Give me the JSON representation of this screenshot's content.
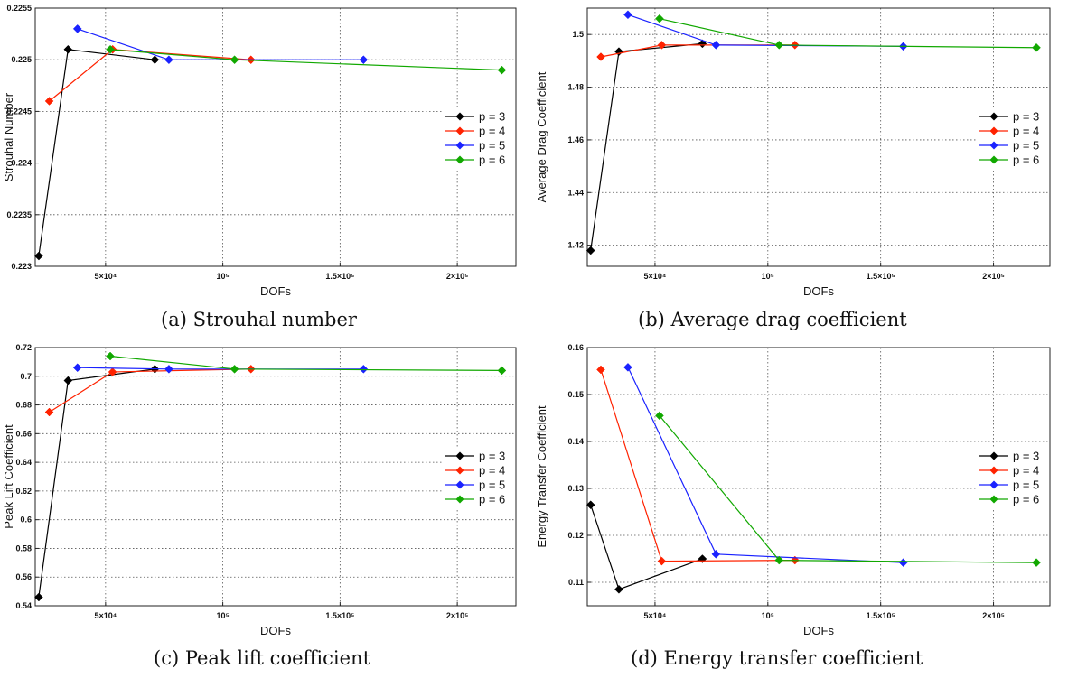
{
  "colors": {
    "p3": "#000000",
    "p4": "#ff2200",
    "p5": "#1a22ff",
    "p6": "#11a800"
  },
  "captions": {
    "a": "(a) Strouhal number",
    "b": "(b) Average drag coefficient",
    "c": "(c) Peak lift coefficient",
    "d": "(d) Energy transfer coefficient"
  },
  "chart_data": [
    {
      "id": "a",
      "type": "line",
      "xlabel": "DOFs",
      "ylabel": "Strouhal Number",
      "xlim": [
        20000,
        225000
      ],
      "ylim": [
        0.223,
        0.2255
      ],
      "xticks": [
        {
          "v": 50000,
          "label": "5×10⁴"
        },
        {
          "v": 100000,
          "label": "10⁵"
        },
        {
          "v": 150000,
          "label": "1.5×10⁵"
        },
        {
          "v": 200000,
          "label": "2×10⁵"
        }
      ],
      "yticks": [
        {
          "v": 0.223,
          "label": "0.223"
        },
        {
          "v": 0.2235,
          "label": "0.2235"
        },
        {
          "v": 0.224,
          "label": "0.224"
        },
        {
          "v": 0.2245,
          "label": "0.2245"
        },
        {
          "v": 0.225,
          "label": "0.225"
        },
        {
          "v": 0.2255,
          "label": "0.2255"
        }
      ],
      "legend": "right",
      "series": [
        {
          "name": "p = 3",
          "color": "p3",
          "x": [
            21500,
            34000,
            71000
          ],
          "y": [
            0.2231,
            0.2251,
            0.225
          ]
        },
        {
          "name": "p = 4",
          "color": "p4",
          "x": [
            26000,
            53000,
            112000
          ],
          "y": [
            0.2246,
            0.2251,
            0.225
          ]
        },
        {
          "name": "p = 5",
          "color": "p5",
          "x": [
            38000,
            77000,
            160000
          ],
          "y": [
            0.2253,
            0.225,
            0.225
          ]
        },
        {
          "name": "p = 6",
          "color": "p6",
          "x": [
            52000,
            105000,
            219000
          ],
          "y": [
            0.2251,
            0.225,
            0.2249
          ]
        }
      ]
    },
    {
      "id": "b",
      "type": "line",
      "xlabel": "DOFs",
      "ylabel": "Average Drag Coefficient",
      "xlim": [
        20000,
        225000
      ],
      "ylim": [
        1.412,
        1.51
      ],
      "xticks": [
        {
          "v": 50000,
          "label": "5×10⁴"
        },
        {
          "v": 100000,
          "label": "10⁵"
        },
        {
          "v": 150000,
          "label": "1.5×10⁵"
        },
        {
          "v": 200000,
          "label": "2×10⁵"
        }
      ],
      "yticks": [
        {
          "v": 1.42,
          "label": "1.42"
        },
        {
          "v": 1.44,
          "label": "1.44"
        },
        {
          "v": 1.46,
          "label": "1.46"
        },
        {
          "v": 1.48,
          "label": "1.48"
        },
        {
          "v": 1.5,
          "label": "1.5"
        }
      ],
      "legend": "right",
      "series": [
        {
          "name": "p = 3",
          "color": "p3",
          "x": [
            21500,
            34000,
            71000
          ],
          "y": [
            1.418,
            1.4935,
            1.4965
          ]
        },
        {
          "name": "p = 4",
          "color": "p4",
          "x": [
            26000,
            53000,
            112000
          ],
          "y": [
            1.4915,
            1.496,
            1.496
          ]
        },
        {
          "name": "p = 5",
          "color": "p5",
          "x": [
            38000,
            77000,
            160000
          ],
          "y": [
            1.5075,
            1.496,
            1.4955
          ]
        },
        {
          "name": "p = 6",
          "color": "p6",
          "x": [
            52000,
            105000,
            219000
          ],
          "y": [
            1.506,
            1.496,
            1.495
          ]
        }
      ]
    },
    {
      "id": "c",
      "type": "line",
      "xlabel": "DOFs",
      "ylabel": "Peak Lift Coefficient",
      "xlim": [
        20000,
        225000
      ],
      "ylim": [
        0.54,
        0.72
      ],
      "xticks": [
        {
          "v": 50000,
          "label": "5×10⁴"
        },
        {
          "v": 100000,
          "label": "10⁵"
        },
        {
          "v": 150000,
          "label": "1.5×10⁵"
        },
        {
          "v": 200000,
          "label": "2×10⁵"
        }
      ],
      "yticks": [
        {
          "v": 0.54,
          "label": "0.54"
        },
        {
          "v": 0.56,
          "label": "0.56"
        },
        {
          "v": 0.58,
          "label": "0.58"
        },
        {
          "v": 0.6,
          "label": "0.6"
        },
        {
          "v": 0.62,
          "label": "0.62"
        },
        {
          "v": 0.64,
          "label": "0.64"
        },
        {
          "v": 0.66,
          "label": "0.66"
        },
        {
          "v": 0.68,
          "label": "0.68"
        },
        {
          "v": 0.7,
          "label": "0.7"
        },
        {
          "v": 0.72,
          "label": "0.72"
        }
      ],
      "legend": "right",
      "series": [
        {
          "name": "p = 3",
          "color": "p3",
          "x": [
            21500,
            34000,
            71000
          ],
          "y": [
            0.546,
            0.697,
            0.705
          ]
        },
        {
          "name": "p = 4",
          "color": "p4",
          "x": [
            26000,
            53000,
            112000
          ],
          "y": [
            0.675,
            0.703,
            0.705
          ]
        },
        {
          "name": "p = 5",
          "color": "p5",
          "x": [
            38000,
            77000,
            160000
          ],
          "y": [
            0.706,
            0.705,
            0.705
          ]
        },
        {
          "name": "p = 6",
          "color": "p6",
          "x": [
            52000,
            105000,
            219000
          ],
          "y": [
            0.714,
            0.705,
            0.704
          ]
        }
      ]
    },
    {
      "id": "d",
      "type": "line",
      "xlabel": "DOFs",
      "ylabel": "Energy Transfer Coefficient",
      "xlim": [
        20000,
        225000
      ],
      "ylim": [
        0.105,
        0.16
      ],
      "xticks": [
        {
          "v": 50000,
          "label": "5×10⁴"
        },
        {
          "v": 100000,
          "label": "10⁵"
        },
        {
          "v": 150000,
          "label": "1.5×10⁵"
        },
        {
          "v": 200000,
          "label": "2×10⁵"
        }
      ],
      "yticks": [
        {
          "v": 0.11,
          "label": "0.11"
        },
        {
          "v": 0.12,
          "label": "0.12"
        },
        {
          "v": 0.13,
          "label": "0.13"
        },
        {
          "v": 0.14,
          "label": "0.14"
        },
        {
          "v": 0.15,
          "label": "0.15"
        },
        {
          "v": 0.16,
          "label": "0.16"
        }
      ],
      "legend": "right",
      "series": [
        {
          "name": "p = 3",
          "color": "p3",
          "x": [
            21500,
            34000,
            71000
          ],
          "y": [
            0.1265,
            0.1085,
            0.115
          ]
        },
        {
          "name": "p = 4",
          "color": "p4",
          "x": [
            26000,
            53000,
            112000
          ],
          "y": [
            0.1553,
            0.1145,
            0.1147
          ]
        },
        {
          "name": "p = 5",
          "color": "p5",
          "x": [
            38000,
            77000,
            160000
          ],
          "y": [
            0.1558,
            0.116,
            0.1142
          ]
        },
        {
          "name": "p = 6",
          "color": "p6",
          "x": [
            52000,
            105000,
            219000
          ],
          "y": [
            0.1455,
            0.1147,
            0.1142
          ]
        }
      ]
    }
  ]
}
